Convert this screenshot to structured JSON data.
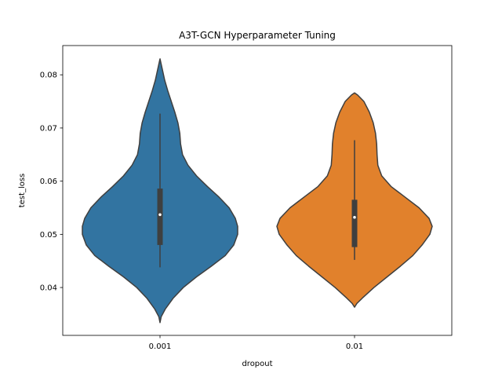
{
  "chart_data": {
    "type": "violin",
    "title": "A3T-GCN Hyperparameter Tuning",
    "xlabel": "dropout",
    "ylabel": "test_loss",
    "categories": [
      "0.001",
      "0.01"
    ],
    "ylim": [
      0.031,
      0.0855
    ],
    "yticks": [
      0.04,
      0.05,
      0.06,
      0.07,
      0.08
    ],
    "ytick_labels": [
      "0.04",
      "0.05",
      "0.06",
      "0.07",
      "0.08"
    ],
    "grid": false,
    "series": [
      {
        "category": "0.001",
        "color": "#3274a1",
        "min": 0.0334,
        "max": 0.083,
        "box": {
          "q1": 0.048,
          "median": 0.0537,
          "q3": 0.0586,
          "whisker_low": 0.0438,
          "whisker_high": 0.0727
        },
        "density": [
          [
            0.0334,
            0.0
          ],
          [
            0.0345,
            0.015
          ],
          [
            0.036,
            0.07
          ],
          [
            0.038,
            0.17
          ],
          [
            0.04,
            0.3
          ],
          [
            0.042,
            0.47
          ],
          [
            0.044,
            0.66
          ],
          [
            0.046,
            0.84
          ],
          [
            0.048,
            0.95
          ],
          [
            0.05,
            1.0
          ],
          [
            0.0515,
            1.0
          ],
          [
            0.053,
            0.97
          ],
          [
            0.055,
            0.89
          ],
          [
            0.057,
            0.76
          ],
          [
            0.059,
            0.61
          ],
          [
            0.061,
            0.47
          ],
          [
            0.063,
            0.36
          ],
          [
            0.065,
            0.29
          ],
          [
            0.067,
            0.265
          ],
          [
            0.069,
            0.255
          ],
          [
            0.071,
            0.23
          ],
          [
            0.073,
            0.19
          ],
          [
            0.075,
            0.145
          ],
          [
            0.077,
            0.1
          ],
          [
            0.079,
            0.06
          ],
          [
            0.081,
            0.03
          ],
          [
            0.082,
            0.015
          ],
          [
            0.083,
            0.0
          ]
        ]
      },
      {
        "category": "0.01",
        "color": "#e1812c",
        "min": 0.0363,
        "max": 0.0766,
        "box": {
          "q1": 0.0476,
          "median": 0.0532,
          "q3": 0.0565,
          "whisker_low": 0.0452,
          "whisker_high": 0.0677
        },
        "density": [
          [
            0.0363,
            0.0
          ],
          [
            0.037,
            0.03
          ],
          [
            0.038,
            0.1
          ],
          [
            0.04,
            0.25
          ],
          [
            0.042,
            0.42
          ],
          [
            0.044,
            0.59
          ],
          [
            0.046,
            0.75
          ],
          [
            0.048,
            0.87
          ],
          [
            0.05,
            0.97
          ],
          [
            0.0515,
            1.0
          ],
          [
            0.053,
            0.96
          ],
          [
            0.055,
            0.83
          ],
          [
            0.057,
            0.65
          ],
          [
            0.059,
            0.47
          ],
          [
            0.061,
            0.35
          ],
          [
            0.063,
            0.3
          ],
          [
            0.065,
            0.29
          ],
          [
            0.067,
            0.285
          ],
          [
            0.069,
            0.27
          ],
          [
            0.071,
            0.24
          ],
          [
            0.073,
            0.19
          ],
          [
            0.075,
            0.12
          ],
          [
            0.0762,
            0.04
          ],
          [
            0.0766,
            0.0
          ]
        ]
      }
    ]
  }
}
